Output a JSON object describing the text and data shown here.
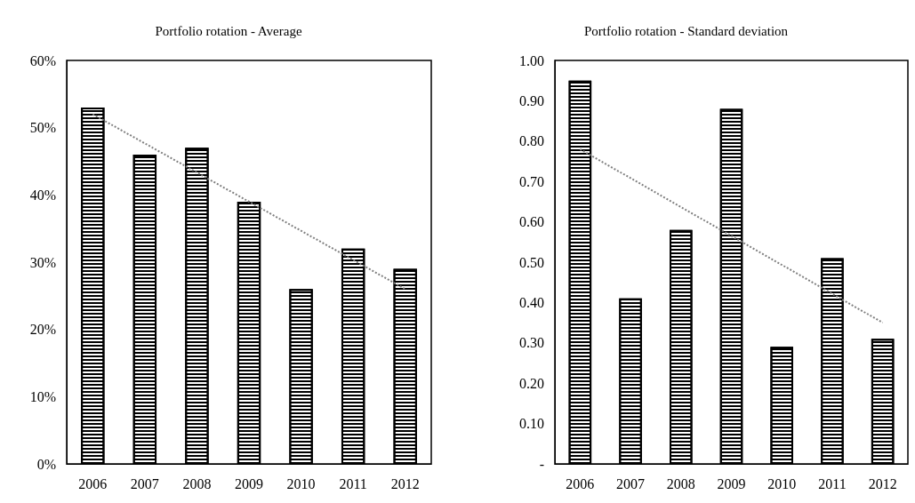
{
  "chart_data": [
    {
      "type": "bar",
      "title": "Portfolio rotation - Average",
      "categories": [
        "2006",
        "2007",
        "2008",
        "2009",
        "2010",
        "2011",
        "2012"
      ],
      "series": [
        {
          "color": "#000000",
          "values": [
            53,
            46,
            47,
            39,
            26,
            32,
            29
          ]
        },
        {
          "type": "line",
          "color": "#808080",
          "values": [
            52,
            null,
            null,
            null,
            null,
            null,
            26
          ],
          "line_style": "dotted",
          "marker": "none"
        }
      ],
      "ylim": [
        0,
        60
      ],
      "yticks": [
        {
          "value": 0,
          "label": "0%"
        },
        {
          "value": 10,
          "label": "10%"
        },
        {
          "value": 20,
          "label": "20%"
        },
        {
          "value": 30,
          "label": "30%"
        },
        {
          "value": 40,
          "label": "40%"
        },
        {
          "value": 50,
          "label": "50%"
        },
        {
          "value": 60,
          "label": "60%"
        }
      ],
      "grid": false
    },
    {
      "type": "bar",
      "title": "Portfolio rotation - Standard deviation",
      "categories": [
        "2006",
        "2007",
        "2008",
        "2009",
        "2010",
        "2011",
        "2012"
      ],
      "series": [
        {
          "color": "#000000",
          "values": [
            0.95,
            0.41,
            0.58,
            0.88,
            0.29,
            0.51,
            0.31
          ]
        },
        {
          "type": "line",
          "color": "#808080",
          "values": [
            0.78,
            null,
            null,
            null,
            null,
            null,
            0.35
          ],
          "line_style": "dotted",
          "marker": "none"
        }
      ],
      "ylim": [
        0,
        1
      ],
      "yticks": [
        {
          "value": 0,
          "label": "-"
        },
        {
          "value": 0.1,
          "label": "0.10"
        },
        {
          "value": 0.2,
          "label": "0.20"
        },
        {
          "value": 0.3,
          "label": "0.30"
        },
        {
          "value": 0.4,
          "label": "0.40"
        },
        {
          "value": 0.5,
          "label": "0.50"
        },
        {
          "value": 0.6,
          "label": "0.60"
        },
        {
          "value": 0.7,
          "label": "0.70"
        },
        {
          "value": 0.8,
          "label": "0.80"
        },
        {
          "value": 0.9,
          "label": "0.90"
        },
        {
          "value": 1,
          "label": "1.00"
        }
      ],
      "grid": false
    }
  ]
}
